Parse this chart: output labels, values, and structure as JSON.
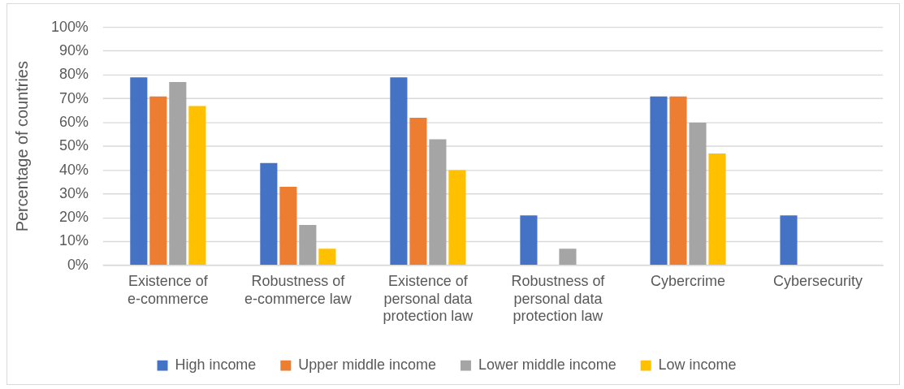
{
  "chart_data": {
    "type": "bar",
    "ylabel": "Percentage of countries",
    "categories": [
      "Existence of e-commerce",
      "Robustness of e-commerce law",
      "Existence of personal data protection law",
      "Robustness of personal data protection law",
      "Cybercrime",
      "Cybersecurity"
    ],
    "series": [
      {
        "name": "High income",
        "color": "#4472c4",
        "values": [
          79,
          43,
          79,
          21,
          71,
          21
        ]
      },
      {
        "name": "Upper middle income",
        "color": "#ed7d31",
        "values": [
          71,
          33,
          62,
          0,
          71,
          0
        ]
      },
      {
        "name": "Lower middle income",
        "color": "#a5a5a5",
        "values": [
          77,
          17,
          53,
          7,
          60,
          0
        ]
      },
      {
        "name": "Low income",
        "color": "#ffc000",
        "values": [
          67,
          7,
          40,
          0,
          47,
          0
        ]
      }
    ],
    "ylim": [
      0,
      100
    ],
    "yticks": [
      {
        "value": 0,
        "label": "0%"
      },
      {
        "value": 10,
        "label": "10%"
      },
      {
        "value": 20,
        "label": "20%"
      },
      {
        "value": 30,
        "label": "30%"
      },
      {
        "value": 40,
        "label": "40%"
      },
      {
        "value": 50,
        "label": "50%"
      },
      {
        "value": 60,
        "label": "60%"
      },
      {
        "value": 70,
        "label": "70%"
      },
      {
        "value": 80,
        "label": "80%"
      },
      {
        "value": 90,
        "label": "90%"
      },
      {
        "value": 100,
        "label": "100%"
      }
    ],
    "grid": "y",
    "legend": "bottom"
  }
}
